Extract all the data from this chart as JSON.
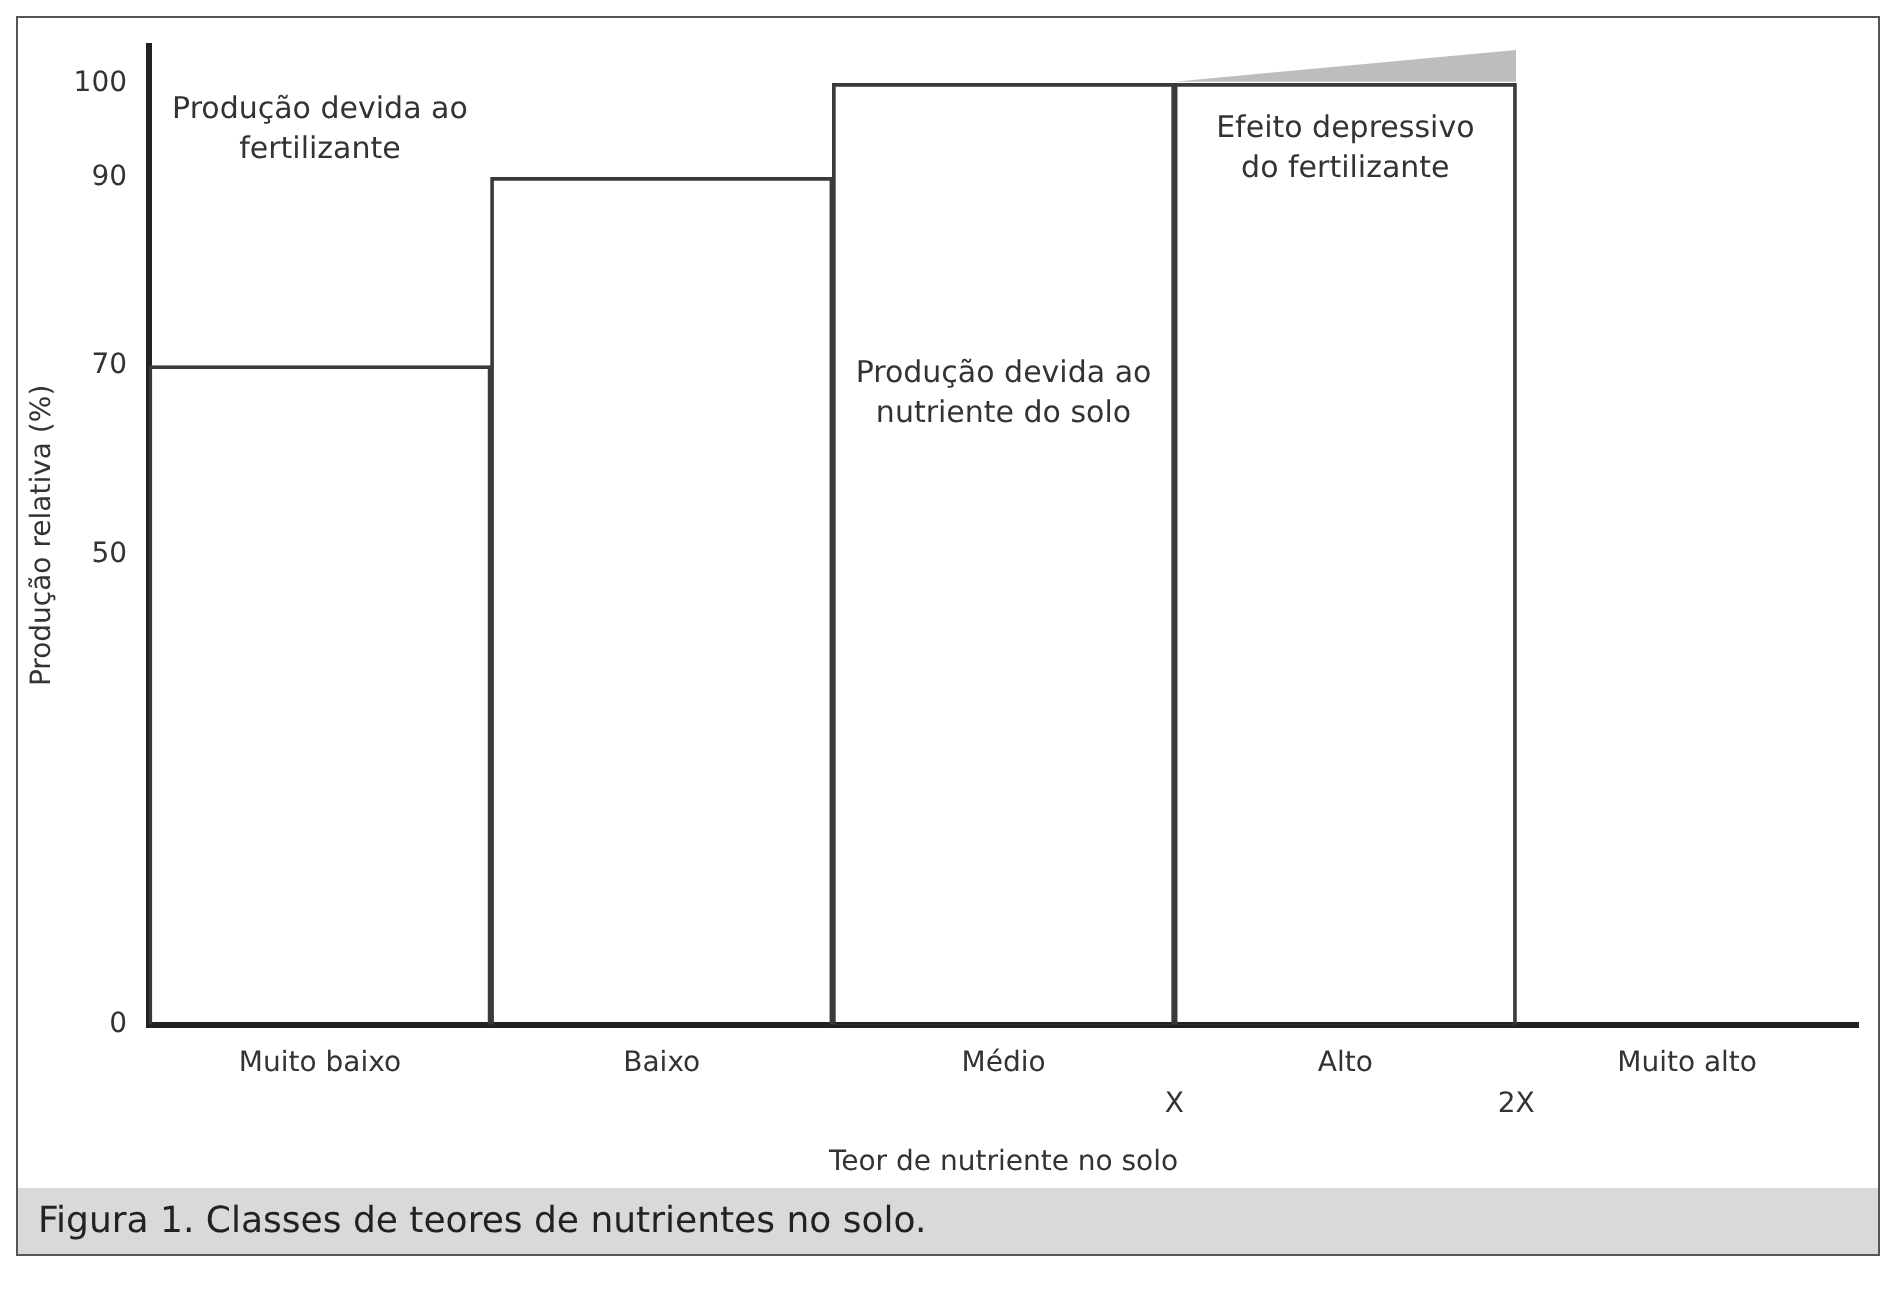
{
  "chart_data": {
    "type": "bar",
    "xlabel": "Teor de nutriente no solo",
    "ylabel": "Produção relativa (%)",
    "categories": [
      "Muito baixo",
      "Baixo",
      "Médio",
      "Alto",
      "Muito alto"
    ],
    "values": [
      70,
      90,
      100,
      100,
      null
    ],
    "color": "#3a3a3a",
    "ylim": [
      0,
      104
    ],
    "yticks": [
      0,
      50,
      70,
      90,
      100
    ],
    "grid": false,
    "legend": false,
    "annotations": [
      "Produção devida ao fertilizante",
      "Produção devida ao nutriente do solo",
      "Efeito depressivo do fertilizante",
      "X",
      "2X",
      "Figura 1. Classes de teores de nutrientes no solo."
    ]
  }
}
